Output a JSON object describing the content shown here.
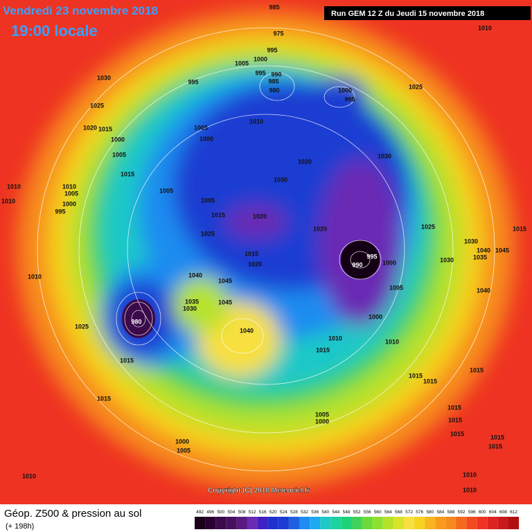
{
  "header": {
    "date": "Vendredi 23 novembre 2018",
    "time": "19:00 locale",
    "run": "Run GEM 12 Z du Jeudi 15 novembre 2018"
  },
  "copyright": "Copyright (C) 2018 Meteociel.fr",
  "footer": {
    "title": "Géop. Z500 & pression au sol",
    "subtitle": "(+ 198h)"
  },
  "scale": [
    "492",
    "496",
    "500",
    "504",
    "508",
    "512",
    "516",
    "520",
    "524",
    "528",
    "532",
    "536",
    "540",
    "544",
    "548",
    "552",
    "556",
    "560",
    "564",
    "568",
    "572",
    "576",
    "580",
    "584",
    "588",
    "592",
    "596",
    "600",
    "604",
    "608",
    "612"
  ],
  "pressure_labels": [
    "1010",
    "985",
    "975",
    "995",
    "1000",
    "1005",
    "995",
    "990",
    "985",
    "980",
    "1000",
    "995",
    "1025",
    "995",
    "1030",
    "1025",
    "1020",
    "1015",
    "1000",
    "1005",
    "1015",
    "1010",
    "1010",
    "1005",
    "1000",
    "995",
    "1010",
    "1005",
    "1000",
    "1010",
    "1005",
    "1005",
    "1020",
    "1030",
    "1030",
    "1015",
    "1025",
    "1020",
    "1020",
    "1015",
    "1020",
    "990",
    "995",
    "1000",
    "1005",
    "1000",
    "1025",
    "1030",
    "1040",
    "1045",
    "1035",
    "1030",
    "1015",
    "1040",
    "1010",
    "1040",
    "1045",
    "1045",
    "1035",
    "1030",
    "980",
    "1025",
    "1040",
    "1010",
    "1015",
    "1010",
    "1015",
    "1015",
    "1015",
    "1015",
    "1015",
    "1015",
    "1015",
    "1015",
    "1005",
    "1000",
    "1015",
    "1015",
    "1000",
    "1005",
    "1010",
    "1010",
    "1010"
  ]
}
